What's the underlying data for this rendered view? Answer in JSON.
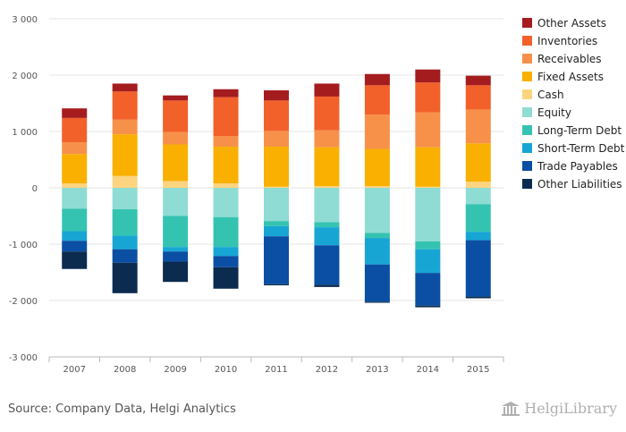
{
  "source_text": "Source: Company Data, Helgi Analytics",
  "brand": {
    "name": "HelgiLibrary",
    "icon": "library-building-icon"
  },
  "chart_data": {
    "type": "bar",
    "stacked": true,
    "categories": [
      "2007",
      "2008",
      "2009",
      "2010",
      "2011",
      "2012",
      "2013",
      "2014",
      "2015"
    ],
    "ylim": [
      -3000,
      3000
    ],
    "yticks": [
      3000,
      2000,
      1000,
      0,
      -1000,
      -2000,
      -3000
    ],
    "ytick_labels": [
      "3 000",
      "2 000",
      "1 000",
      "0",
      "-1 000",
      "-2 000",
      "-3 000"
    ],
    "grid": true,
    "legend_position": "right",
    "series": [
      {
        "name": "Other Assets",
        "color": "#a51c1f",
        "side": "assets",
        "values": [
          170,
          140,
          90,
          140,
          180,
          230,
          200,
          230,
          170
        ]
      },
      {
        "name": "Inventories",
        "color": "#f2612a",
        "side": "assets",
        "values": [
          430,
          500,
          560,
          690,
          540,
          600,
          520,
          530,
          430
        ]
      },
      {
        "name": "Receivables",
        "color": "#f7914a",
        "side": "assets",
        "values": [
          210,
          260,
          220,
          190,
          280,
          300,
          610,
          620,
          600
        ]
      },
      {
        "name": "Fixed Assets",
        "color": "#f9b000",
        "side": "assets",
        "values": [
          520,
          740,
          650,
          650,
          710,
          690,
          660,
          700,
          680
        ]
      },
      {
        "name": "Cash",
        "color": "#fcd480",
        "side": "assets",
        "values": [
          80,
          210,
          120,
          80,
          20,
          30,
          30,
          20,
          110
        ]
      },
      {
        "name": "Equity",
        "color": "#8fdcd4",
        "side": "liabilities",
        "values": [
          370,
          380,
          500,
          520,
          590,
          610,
          800,
          950,
          290
        ]
      },
      {
        "name": "Long-Term Debt",
        "color": "#35c3b1",
        "side": "liabilities",
        "values": [
          400,
          470,
          550,
          530,
          90,
          90,
          90,
          140,
          490
        ]
      },
      {
        "name": "Short-Term Debt",
        "color": "#17a6d4",
        "side": "liabilities",
        "values": [
          170,
          240,
          80,
          160,
          180,
          320,
          470,
          420,
          150
        ]
      },
      {
        "name": "Trade Payables",
        "color": "#0a4fa3",
        "side": "liabilities",
        "values": [
          190,
          240,
          180,
          200,
          850,
          700,
          660,
          580,
          1000
        ]
      },
      {
        "name": "Other Liabilities",
        "color": "#0b2b4f",
        "side": "liabilities",
        "values": [
          310,
          540,
          360,
          380,
          20,
          40,
          20,
          30,
          30
        ]
      }
    ]
  }
}
